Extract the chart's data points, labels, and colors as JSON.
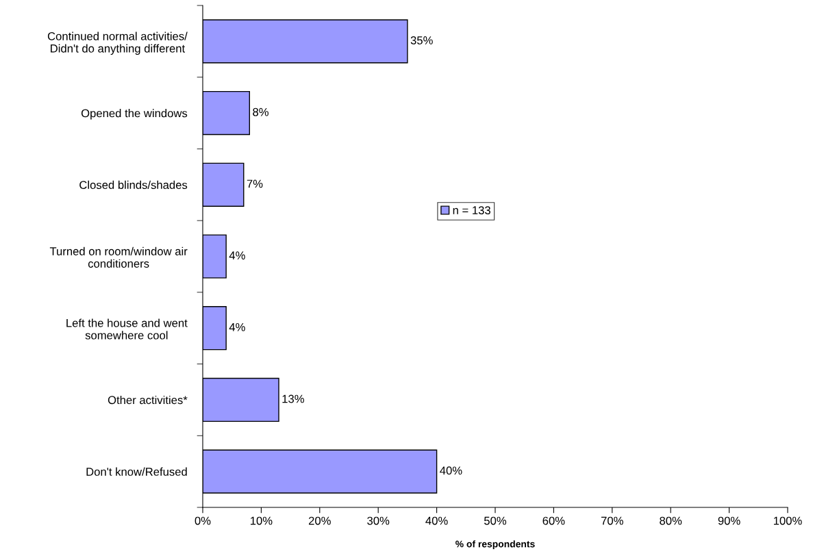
{
  "chart_data": {
    "type": "bar",
    "orientation": "horizontal",
    "categories": [
      "Continued normal activities/\nDidn't do anything different",
      "Opened the windows",
      "Closed blinds/shades",
      "Turned on room/window air\nconditioners",
      "Left the house and went\nsomewhere cool",
      "Other activities*",
      "Don't know/Refused"
    ],
    "series": [
      {
        "name": "n = 133",
        "color": "#9999ff",
        "values": [
          35,
          8,
          7,
          4,
          4,
          13,
          40
        ]
      }
    ],
    "xlabel": "% of respondents",
    "xlim": [
      0,
      100
    ],
    "xticks": [
      {
        "value": 0,
        "label": "0%"
      },
      {
        "value": 10,
        "label": "10%"
      },
      {
        "value": 20,
        "label": "20%"
      },
      {
        "value": 30,
        "label": "30%"
      },
      {
        "value": 40,
        "label": "40%"
      },
      {
        "value": 50,
        "label": "50%"
      },
      {
        "value": 60,
        "label": "60%"
      },
      {
        "value": 70,
        "label": "70%"
      },
      {
        "value": 80,
        "label": "80%"
      },
      {
        "value": 90,
        "label": "90%"
      },
      {
        "value": 100,
        "label": "100%"
      }
    ],
    "value_labels": [
      "35%",
      "8%",
      "7%",
      "4%",
      "4%",
      "13%",
      "40%"
    ],
    "legend": "center",
    "grid": false
  }
}
